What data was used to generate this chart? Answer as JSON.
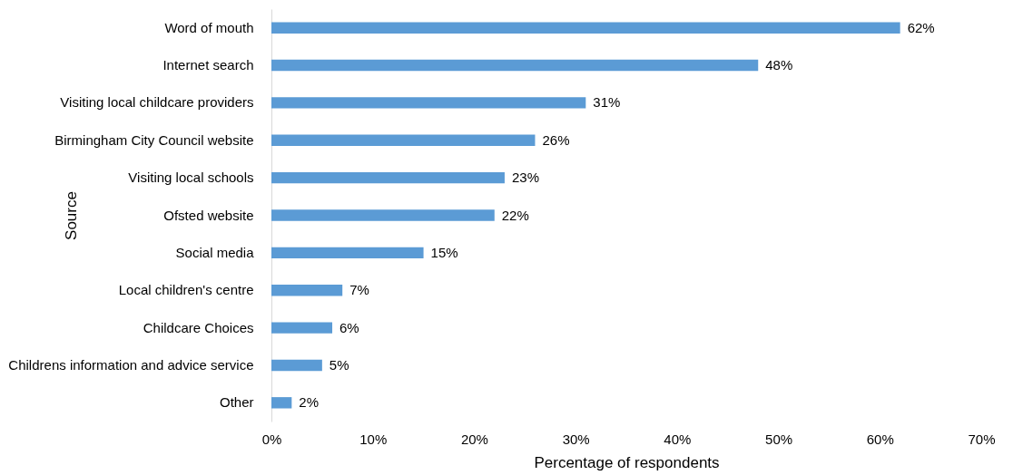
{
  "chart_data": {
    "type": "bar",
    "orientation": "horizontal",
    "categories": [
      "Word of mouth",
      "Internet search",
      "Visiting local childcare providers",
      "Birmingham City Council website",
      "Visiting local schools",
      "Ofsted website",
      "Social media",
      "Local children's centre",
      "Childcare Choices",
      "Childrens information and advice service",
      "Other"
    ],
    "values": [
      62,
      48,
      31,
      26,
      23,
      22,
      15,
      7,
      6,
      5,
      2
    ],
    "value_labels": [
      "62%",
      "48%",
      "31%",
      "26%",
      "23%",
      "22%",
      "15%",
      "7%",
      "6%",
      "5%",
      "2%"
    ],
    "color": "#5b9bd5",
    "xlim": [
      0,
      70
    ],
    "xticks": [
      {
        "value": 0,
        "label": "0%"
      },
      {
        "value": 10,
        "label": "10%"
      },
      {
        "value": 20,
        "label": "20%"
      },
      {
        "value": 30,
        "label": "30%"
      },
      {
        "value": 40,
        "label": "40%"
      },
      {
        "value": 50,
        "label": "50%"
      },
      {
        "value": 60,
        "label": "60%"
      },
      {
        "value": 70,
        "label": "70%"
      }
    ],
    "xlabel": "Percentage of respondents",
    "ylabel": "Source",
    "grid": false
  }
}
